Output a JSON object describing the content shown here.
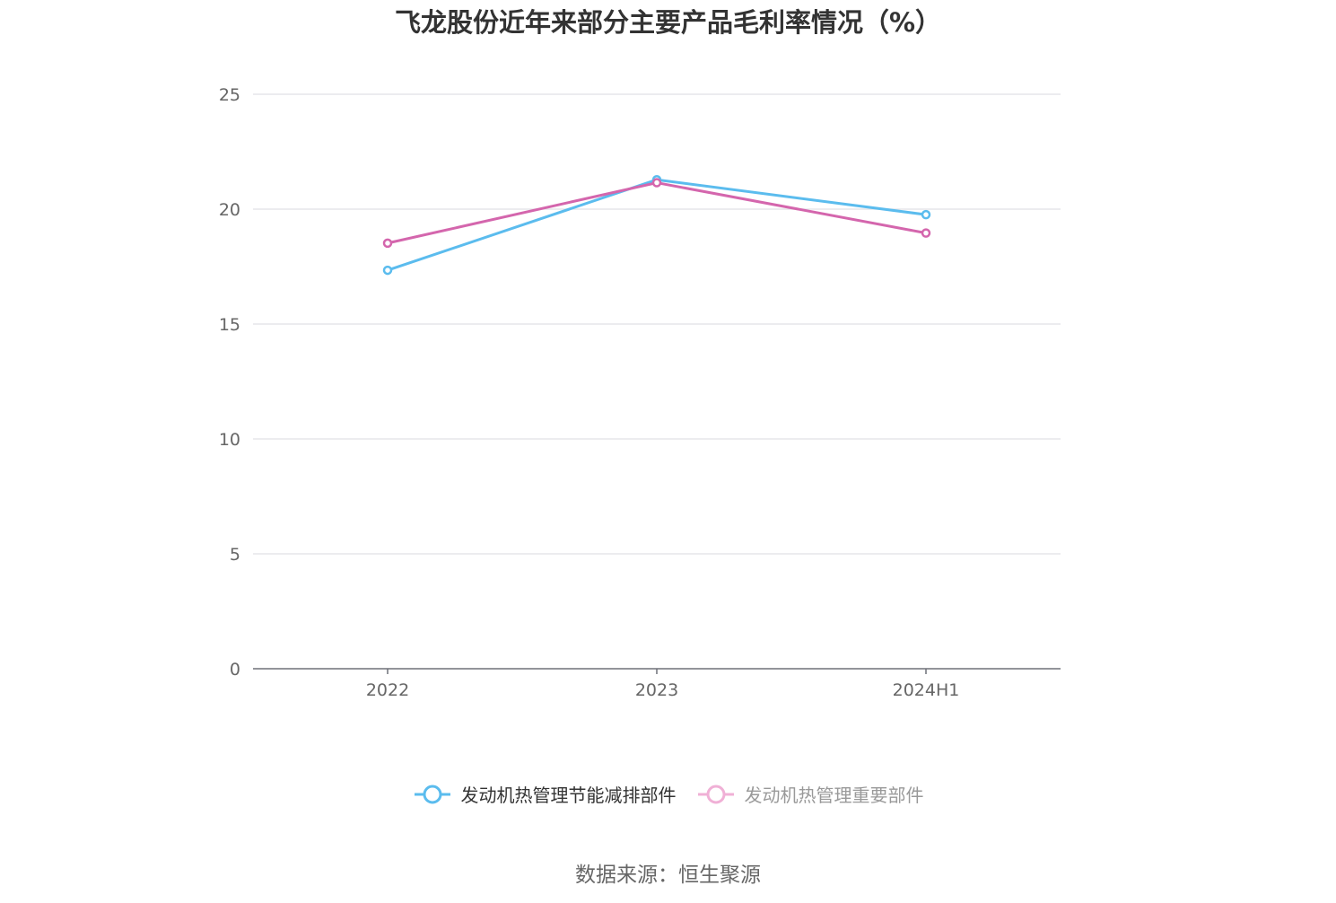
{
  "chart_data": {
    "type": "line",
    "title": "飞龙股份近年来部分主要产品毛利率情况（%）",
    "categories": [
      "2022",
      "2023",
      "2024H1"
    ],
    "ylim": [
      0,
      25
    ],
    "yticks": [
      0,
      5,
      10,
      15,
      20,
      25
    ],
    "grid": true,
    "legend_position": "bottom",
    "series": [
      {
        "name": "发动机热管理节能减排部件",
        "color": "#5bbcee",
        "values": [
          17.34,
          21.28,
          19.76
        ]
      },
      {
        "name": "发动机热管理重要部件",
        "color": "#d466ad",
        "values": [
          18.52,
          21.15,
          18.96
        ]
      }
    ],
    "source": "数据来源：恒生聚源"
  }
}
